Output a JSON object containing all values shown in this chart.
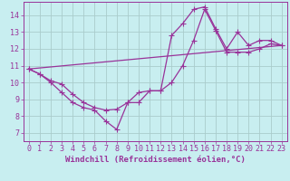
{
  "title": "",
  "xlabel": "Windchill (Refroidissement éolien,°C)",
  "bg_color": "#c8eef0",
  "grid_color": "#aacccc",
  "line_color": "#993399",
  "xlim": [
    -0.5,
    23.5
  ],
  "ylim": [
    6.5,
    14.8
  ],
  "xticks": [
    0,
    1,
    2,
    3,
    4,
    5,
    6,
    7,
    8,
    9,
    10,
    11,
    12,
    13,
    14,
    15,
    16,
    17,
    18,
    19,
    20,
    21,
    22,
    23
  ],
  "yticks": [
    7,
    8,
    9,
    10,
    11,
    12,
    13,
    14
  ],
  "series1_x": [
    0,
    1,
    2,
    3,
    4,
    5,
    6,
    7,
    8,
    9,
    10,
    11,
    12,
    13,
    14,
    15,
    16,
    17,
    18,
    19,
    20,
    21,
    22,
    23
  ],
  "series1_y": [
    10.8,
    10.5,
    10.1,
    9.9,
    9.3,
    8.8,
    8.5,
    8.35,
    8.4,
    8.8,
    8.8,
    9.5,
    9.5,
    12.8,
    13.5,
    14.35,
    14.5,
    13.2,
    12.0,
    13.0,
    12.2,
    12.5,
    12.5,
    12.2
  ],
  "series2_x": [
    0,
    1,
    2,
    3,
    4,
    5,
    6,
    7,
    8,
    9,
    10,
    11,
    12,
    13,
    14,
    15,
    16,
    17,
    18,
    19,
    20,
    21,
    22,
    23
  ],
  "series2_y": [
    10.8,
    10.5,
    10.0,
    9.4,
    8.8,
    8.5,
    8.35,
    7.7,
    7.2,
    8.8,
    9.4,
    9.5,
    9.5,
    10.0,
    11.0,
    12.5,
    14.35,
    13.1,
    11.8,
    11.8,
    11.8,
    12.0,
    12.3,
    12.2
  ],
  "series3_x": [
    0,
    23
  ],
  "series3_y": [
    10.8,
    12.2
  ],
  "marker": "+",
  "markersize": 4,
  "linewidth": 0.9,
  "xlabel_fontsize": 6.5,
  "tick_fontsize": 6.0
}
